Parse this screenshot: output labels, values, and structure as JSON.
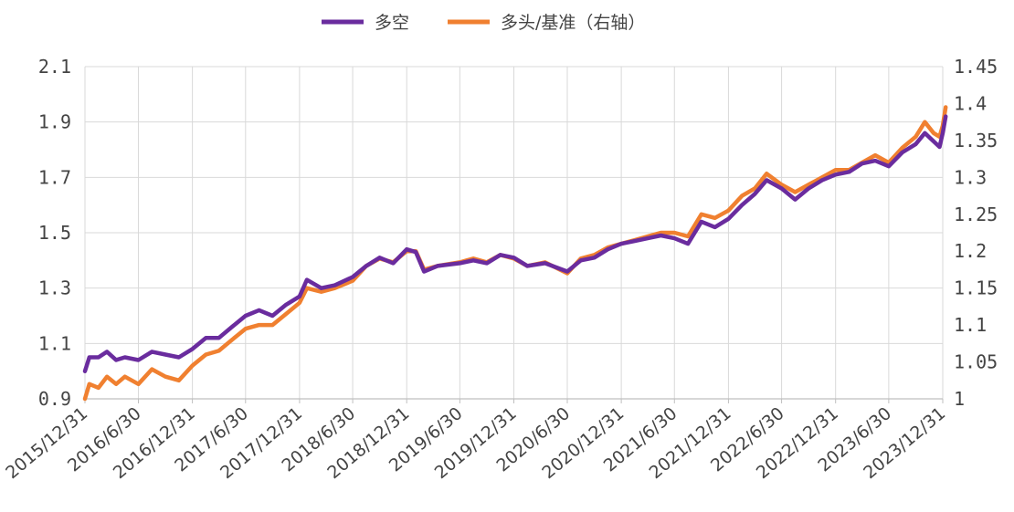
{
  "chart_data": {
    "type": "line",
    "grid": true,
    "legend_position": "top-center",
    "x_tick_labels": [
      "2015/12/31",
      "2016/6/30",
      "2016/12/31",
      "2017/6/30",
      "2017/12/31",
      "2018/6/30",
      "2018/12/31",
      "2019/6/30",
      "2019/12/31",
      "2020/6/30",
      "2020/12/31",
      "2021/6/30",
      "2021/12/31",
      "2022/6/30",
      "2022/12/31",
      "2023/6/30",
      "2023/12/31"
    ],
    "y_left": {
      "lim": [
        0.9,
        2.1
      ],
      "ticks": [
        "0.9",
        "1.1",
        "1.3",
        "1.5",
        "1.7",
        "1.9",
        "2.1"
      ]
    },
    "y_right": {
      "lim": [
        1.0,
        1.45
      ],
      "ticks": [
        "1",
        "1.05",
        "1.1",
        "1.15",
        "1.2",
        "1.25",
        "1.3",
        "1.35",
        "1.4",
        "1.45"
      ]
    },
    "series": [
      {
        "name": "多空",
        "axis": "left",
        "color": "#6a2c9e",
        "points": [
          [
            "2015/12/31",
            1.0
          ],
          [
            "2016/1/15",
            1.05
          ],
          [
            "2016/2/15",
            1.05
          ],
          [
            "2016/3/15",
            1.07
          ],
          [
            "2016/4/15",
            1.04
          ],
          [
            "2016/5/15",
            1.05
          ],
          [
            "2016/6/30",
            1.04
          ],
          [
            "2016/8/15",
            1.07
          ],
          [
            "2016/9/30",
            1.06
          ],
          [
            "2016/11/15",
            1.05
          ],
          [
            "2016/12/31",
            1.08
          ],
          [
            "2017/2/15",
            1.12
          ],
          [
            "2017/3/31",
            1.12
          ],
          [
            "2017/5/15",
            1.16
          ],
          [
            "2017/6/30",
            1.2
          ],
          [
            "2017/8/15",
            1.22
          ],
          [
            "2017/9/30",
            1.2
          ],
          [
            "2017/11/15",
            1.24
          ],
          [
            "2017/12/31",
            1.27
          ],
          [
            "2018/1/25",
            1.33
          ],
          [
            "2018/3/15",
            1.3
          ],
          [
            "2018/4/30",
            1.31
          ],
          [
            "2018/6/30",
            1.34
          ],
          [
            "2018/8/15",
            1.38
          ],
          [
            "2018/9/30",
            1.41
          ],
          [
            "2018/11/15",
            1.39
          ],
          [
            "2018/12/31",
            1.44
          ],
          [
            "2019/1/31",
            1.43
          ],
          [
            "2019/2/28",
            1.36
          ],
          [
            "2019/4/15",
            1.38
          ],
          [
            "2019/6/30",
            1.39
          ],
          [
            "2019/8/15",
            1.4
          ],
          [
            "2019/9/30",
            1.39
          ],
          [
            "2019/11/15",
            1.42
          ],
          [
            "2019/12/31",
            1.41
          ],
          [
            "2020/2/15",
            1.38
          ],
          [
            "2020/4/15",
            1.39
          ],
          [
            "2020/6/30",
            1.36
          ],
          [
            "2020/8/15",
            1.4
          ],
          [
            "2020/9/30",
            1.41
          ],
          [
            "2020/11/15",
            1.44
          ],
          [
            "2020/12/31",
            1.46
          ],
          [
            "2021/2/15",
            1.47
          ],
          [
            "2021/3/31",
            1.48
          ],
          [
            "2021/5/15",
            1.49
          ],
          [
            "2021/6/30",
            1.48
          ],
          [
            "2021/8/15",
            1.46
          ],
          [
            "2021/9/30",
            1.54
          ],
          [
            "2021/11/15",
            1.52
          ],
          [
            "2021/12/31",
            1.55
          ],
          [
            "2022/2/15",
            1.6
          ],
          [
            "2022/3/31",
            1.64
          ],
          [
            "2022/5/10",
            1.69
          ],
          [
            "2022/6/30",
            1.66
          ],
          [
            "2022/8/15",
            1.62
          ],
          [
            "2022/9/30",
            1.66
          ],
          [
            "2022/11/15",
            1.69
          ],
          [
            "2022/12/31",
            1.71
          ],
          [
            "2023/2/15",
            1.72
          ],
          [
            "2023/3/31",
            1.75
          ],
          [
            "2023/5/15",
            1.76
          ],
          [
            "2023/6/30",
            1.74
          ],
          [
            "2023/8/15",
            1.79
          ],
          [
            "2023/9/30",
            1.82
          ],
          [
            "2023/10/31",
            1.86
          ],
          [
            "2023/11/30",
            1.83
          ],
          [
            "2023/12/20",
            1.81
          ],
          [
            "2023/12/31",
            1.86
          ],
          [
            "2024/1/10",
            1.92
          ]
        ]
      },
      {
        "name": "多头/基准（右轴）",
        "axis": "right",
        "color": "#f08030",
        "points": [
          [
            "2015/12/31",
            1.0
          ],
          [
            "2016/1/15",
            1.02
          ],
          [
            "2016/2/15",
            1.015
          ],
          [
            "2016/3/15",
            1.03
          ],
          [
            "2016/4/15",
            1.02
          ],
          [
            "2016/5/15",
            1.03
          ],
          [
            "2016/6/30",
            1.02
          ],
          [
            "2016/8/15",
            1.04
          ],
          [
            "2016/9/30",
            1.03
          ],
          [
            "2016/11/15",
            1.025
          ],
          [
            "2016/12/31",
            1.045
          ],
          [
            "2017/2/15",
            1.06
          ],
          [
            "2017/3/31",
            1.065
          ],
          [
            "2017/5/15",
            1.08
          ],
          [
            "2017/6/30",
            1.095
          ],
          [
            "2017/8/15",
            1.1
          ],
          [
            "2017/9/30",
            1.1
          ],
          [
            "2017/11/15",
            1.115
          ],
          [
            "2017/12/31",
            1.13
          ],
          [
            "2018/1/25",
            1.15
          ],
          [
            "2018/3/15",
            1.145
          ],
          [
            "2018/4/30",
            1.15
          ],
          [
            "2018/6/30",
            1.16
          ],
          [
            "2018/8/15",
            1.18
          ],
          [
            "2018/9/30",
            1.19
          ],
          [
            "2018/11/15",
            1.185
          ],
          [
            "2018/12/31",
            1.2
          ],
          [
            "2019/1/31",
            1.2
          ],
          [
            "2019/2/28",
            1.175
          ],
          [
            "2019/4/15",
            1.18
          ],
          [
            "2019/6/30",
            1.185
          ],
          [
            "2019/8/15",
            1.19
          ],
          [
            "2019/9/30",
            1.185
          ],
          [
            "2019/11/15",
            1.195
          ],
          [
            "2019/12/31",
            1.19
          ],
          [
            "2020/2/15",
            1.18
          ],
          [
            "2020/4/15",
            1.185
          ],
          [
            "2020/6/30",
            1.17
          ],
          [
            "2020/8/15",
            1.19
          ],
          [
            "2020/9/30",
            1.195
          ],
          [
            "2020/11/15",
            1.205
          ],
          [
            "2020/12/31",
            1.21
          ],
          [
            "2021/2/15",
            1.215
          ],
          [
            "2021/3/31",
            1.22
          ],
          [
            "2021/5/15",
            1.225
          ],
          [
            "2021/6/30",
            1.225
          ],
          [
            "2021/8/15",
            1.22
          ],
          [
            "2021/9/30",
            1.25
          ],
          [
            "2021/11/15",
            1.245
          ],
          [
            "2021/12/31",
            1.255
          ],
          [
            "2022/2/15",
            1.275
          ],
          [
            "2022/3/31",
            1.285
          ],
          [
            "2022/5/10",
            1.305
          ],
          [
            "2022/6/30",
            1.29
          ],
          [
            "2022/8/15",
            1.28
          ],
          [
            "2022/9/30",
            1.29
          ],
          [
            "2022/11/15",
            1.3
          ],
          [
            "2022/12/31",
            1.31
          ],
          [
            "2023/2/15",
            1.31
          ],
          [
            "2023/3/31",
            1.32
          ],
          [
            "2023/5/15",
            1.33
          ],
          [
            "2023/6/30",
            1.32
          ],
          [
            "2023/8/15",
            1.34
          ],
          [
            "2023/9/30",
            1.355
          ],
          [
            "2023/10/31",
            1.375
          ],
          [
            "2023/11/30",
            1.36
          ],
          [
            "2023/12/20",
            1.355
          ],
          [
            "2023/12/31",
            1.37
          ],
          [
            "2024/1/10",
            1.395
          ]
        ]
      }
    ]
  }
}
